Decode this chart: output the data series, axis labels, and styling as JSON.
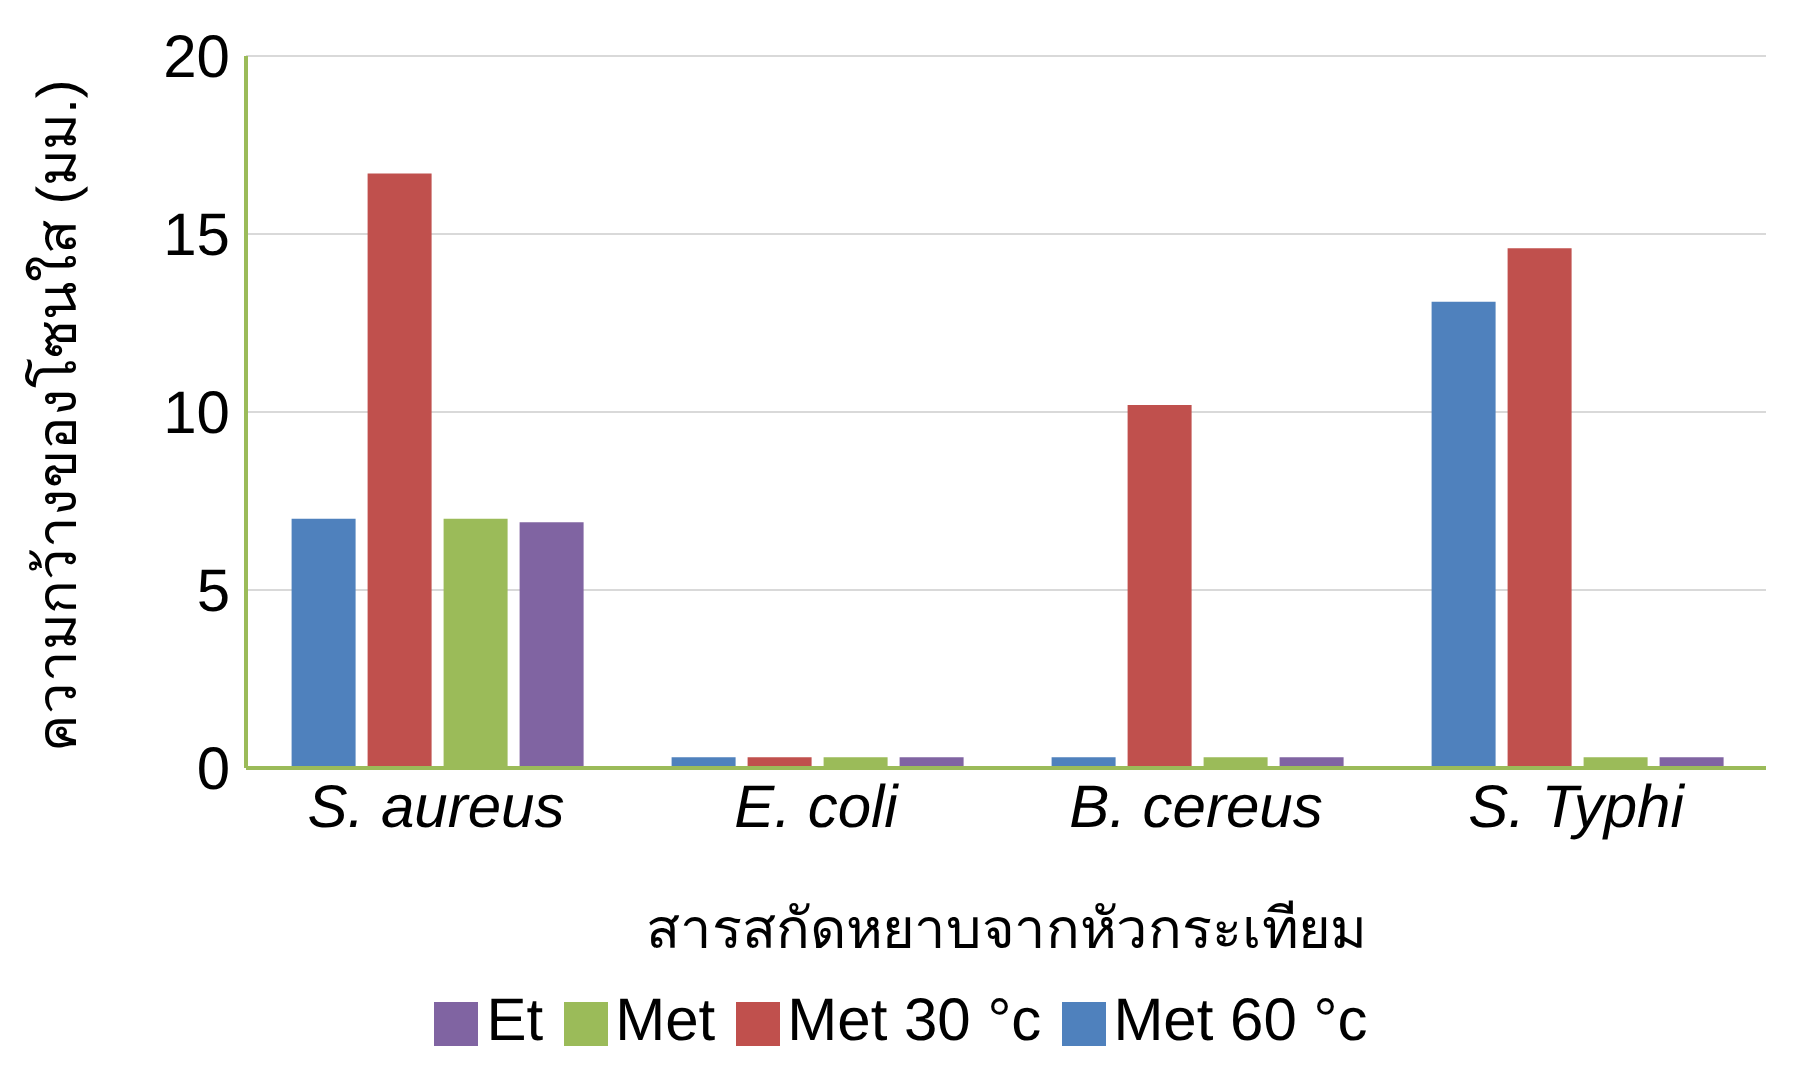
{
  "chart_data": {
    "type": "bar",
    "xlabel": "สารสกัดหยาบจากหัวกระเทียม",
    "ylabel": "ความกว้างของโซนใส (มม.)",
    "categories": [
      "S. aureus",
      "E. coli",
      "B. cereus",
      "S. Typhi"
    ],
    "series": [
      {
        "name": "Met 60 °c",
        "color": "#4f81bd",
        "values": [
          7,
          0.3,
          0.3,
          13.1
        ]
      },
      {
        "name": "Met 30 °c",
        "color": "#c0504d",
        "values": [
          16.7,
          0.3,
          10.2,
          14.6
        ]
      },
      {
        "name": "Met",
        "color": "#9bbb59",
        "values": [
          7,
          0.3,
          0.3,
          0.3
        ]
      },
      {
        "name": "Et",
        "color": "#8064a2",
        "values": [
          6.9,
          0.3,
          0.3,
          0.3
        ]
      }
    ],
    "ylim": [
      0,
      20
    ],
    "yticks": [
      0,
      5,
      10,
      15,
      20
    ],
    "grid": "y",
    "legend": "bottom"
  }
}
